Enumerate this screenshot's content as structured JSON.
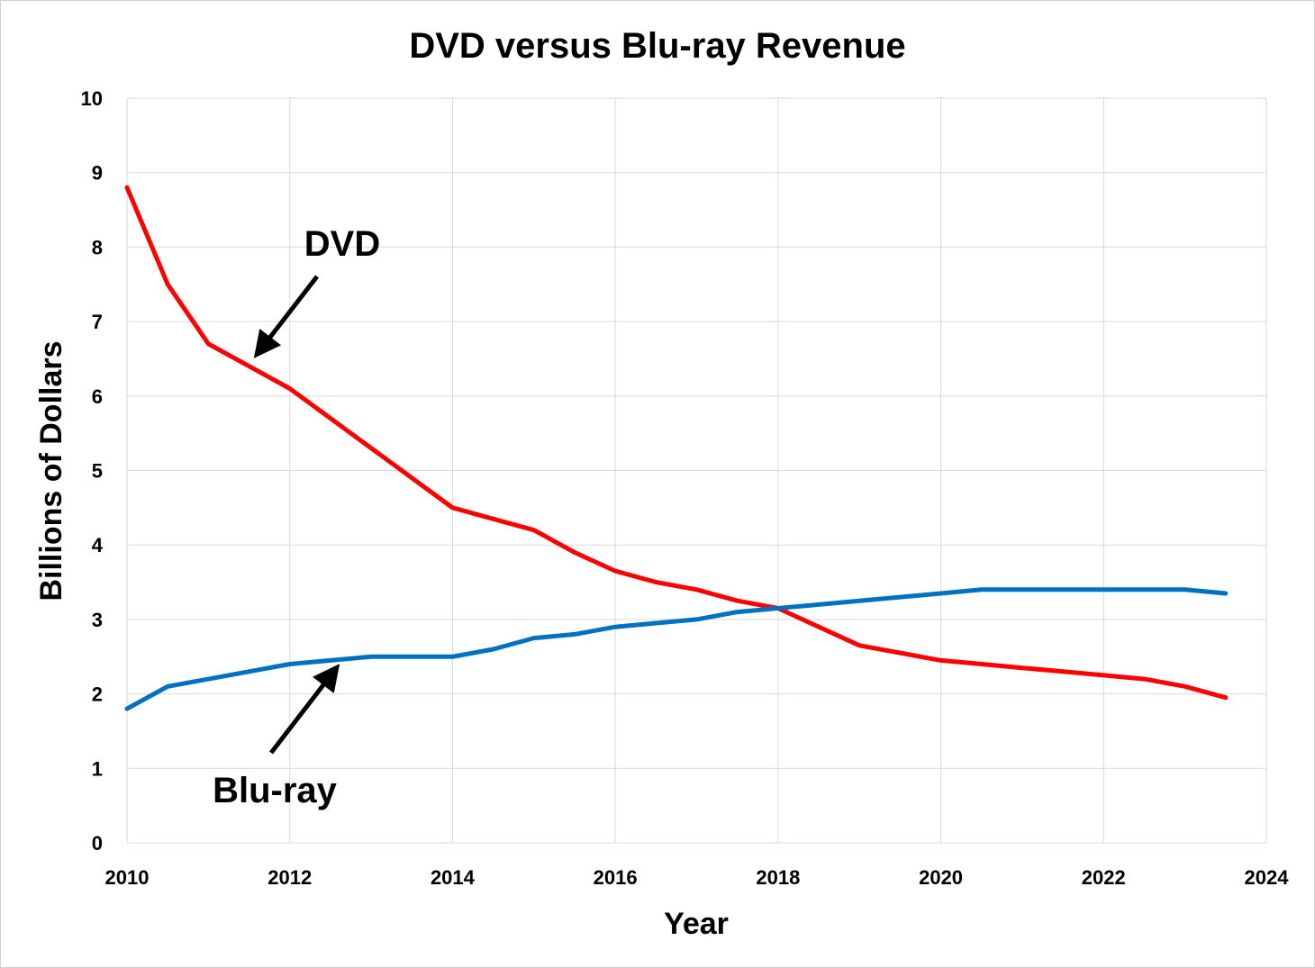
{
  "chart_data": {
    "type": "line",
    "title": "DVD versus Blu-ray Revenue",
    "xlabel": "Year",
    "ylabel": "Billions of Dollars",
    "xlim": [
      2010,
      2024
    ],
    "ylim": [
      0,
      10
    ],
    "x_ticks": [
      "2010",
      "2012",
      "2014",
      "2016",
      "2018",
      "2020",
      "2022",
      "2024"
    ],
    "y_ticks": [
      "0",
      "1",
      "2",
      "3",
      "4",
      "5",
      "6",
      "7",
      "8",
      "9",
      "10"
    ],
    "grid": true,
    "legend": "none",
    "annotations": [
      {
        "text": "DVD",
        "series": "DVD"
      },
      {
        "text": "Blu-ray",
        "series": "Blu-ray"
      }
    ],
    "series": [
      {
        "name": "DVD",
        "color": "#ff0000",
        "x": [
          2010,
          2010.5,
          2011,
          2012,
          2013,
          2014,
          2014.5,
          2015,
          2015.5,
          2016,
          2016.5,
          2017,
          2017.5,
          2018,
          2019,
          2020,
          2020.5,
          2021,
          2021.5,
          2022,
          2022.5,
          2023,
          2023.5
        ],
        "values": [
          8.8,
          7.5,
          6.7,
          6.1,
          5.3,
          4.5,
          4.35,
          4.2,
          3.9,
          3.65,
          3.5,
          3.4,
          3.25,
          3.15,
          2.65,
          2.45,
          2.4,
          2.35,
          2.3,
          2.25,
          2.2,
          2.1,
          1.95
        ]
      },
      {
        "name": "Blu-ray",
        "color": "#0070c0",
        "x": [
          2010,
          2010.5,
          2011,
          2011.5,
          2012,
          2012.5,
          2013,
          2013.5,
          2014,
          2014.5,
          2015,
          2015.5,
          2016,
          2016.5,
          2017,
          2017.5,
          2018,
          2018.5,
          2019,
          2019.5,
          2020,
          2020.5,
          2021,
          2021.5,
          2022,
          2022.5,
          2023,
          2023.5
        ],
        "values": [
          1.8,
          2.1,
          2.2,
          2.3,
          2.4,
          2.45,
          2.5,
          2.5,
          2.5,
          2.6,
          2.75,
          2.8,
          2.9,
          2.95,
          3.0,
          3.1,
          3.15,
          3.2,
          3.25,
          3.3,
          3.35,
          3.4,
          3.4,
          3.4,
          3.4,
          3.4,
          3.4,
          3.35
        ]
      }
    ]
  }
}
